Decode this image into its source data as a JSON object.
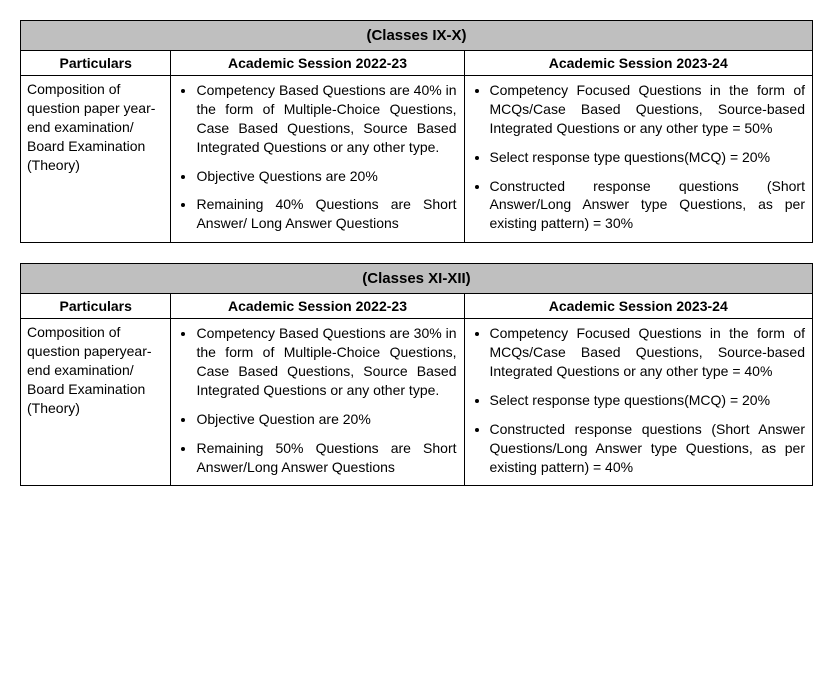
{
  "tables": [
    {
      "title": "(Classes IX-X)",
      "headers": [
        "Particulars",
        "Academic Session 2022-23",
        "Academic Session 2023-24"
      ],
      "particulars": "Composition of question paper year-end examination/ Board Examination (Theory)",
      "session1": [
        "Competency Based Questions are 40% in the form of Multiple-Choice Questions, Case Based Questions, Source Based Integrated Questions or any other type.",
        "Objective Questions are 20%",
        "Remaining 40% Questions are Short Answer/ Long Answer Questions"
      ],
      "session2": [
        "Competency Focused Questions in the form of MCQs/Case Based Questions, Source-based Integrated Questions or any other type = 50%",
        "Select response type questions(MCQ) = 20%",
        "Constructed response questions (Short Answer/Long Answer type Questions, as per existing pattern) = 30%"
      ]
    },
    {
      "title": "(Classes XI-XII)",
      "headers": [
        "Particulars",
        "Academic Session 2022-23",
        "Academic Session 2023-24"
      ],
      "particulars": "Composition of question paperyear-end examination/ Board Examination (Theory)",
      "session1": [
        "Competency Based Questions are 30% in the form of Multiple-Choice Questions, Case Based Questions, Source Based Integrated Questions or any other type.",
        "Objective Question are 20%",
        "Remaining 50% Questions are Short Answer/Long Answer Questions"
      ],
      "session2": [
        "Competency Focused Questions in the form of MCQs/Case Based Questions, Source-based Integrated Questions or any other type = 40%",
        "Select response type questions(MCQ) = 20%",
        "Constructed response questions (Short Answer Questions/Long Answer type Questions, as per existing pattern) = 40%"
      ]
    }
  ],
  "colors": {
    "header_bg": "#bfbfbf",
    "border": "#000000",
    "text": "#000000",
    "background": "#ffffff"
  },
  "font_family": "Arial",
  "base_font_size_pt": 11
}
